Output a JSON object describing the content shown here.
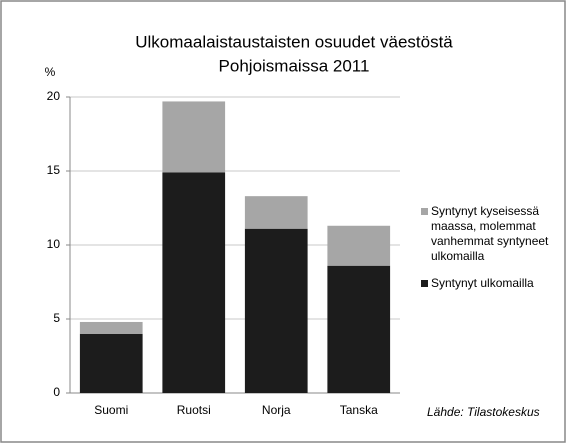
{
  "chart_data": {
    "type": "stacked_bar",
    "title_lines": [
      "Ulkomaalaistaustaisten osuudet väestöstä",
      "Pohjoismaissa 2011"
    ],
    "y_label": "%",
    "categories": [
      "Suomi",
      "Ruotsi",
      "Norja",
      "Tanska"
    ],
    "series": [
      {
        "name": "Syntynyt ulkomailla",
        "color": "#1c1c1c",
        "values": [
          4.0,
          14.9,
          11.1,
          8.6
        ]
      },
      {
        "name": "Syntynyt kyseisessä maassa, molemmat vanhemmat syntyneet ulkomailla",
        "color": "#a6a6a6",
        "values": [
          0.8,
          4.8,
          2.2,
          2.7
        ]
      }
    ],
    "ylim": [
      0,
      20
    ],
    "yticks": [
      0,
      5,
      10,
      15,
      20
    ],
    "grid": true,
    "source": "Lähde: Tilastokeskus"
  }
}
